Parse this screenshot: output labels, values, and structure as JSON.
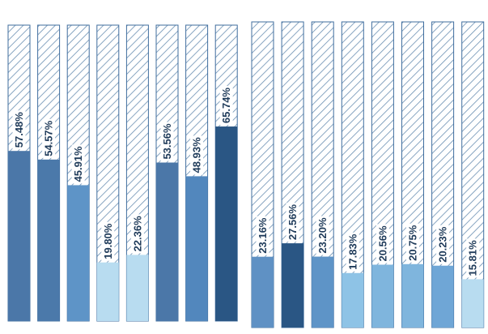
{
  "chart_data": [
    {
      "type": "bar",
      "stacking": "percent-of-100",
      "panel": "left",
      "ylim": [
        0,
        100
      ],
      "grid": false,
      "legend": "none",
      "values": [
        57.48,
        54.57,
        45.91,
        19.8,
        22.36,
        53.56,
        48.93,
        65.74
      ],
      "labels": [
        "57.48%",
        "54.57%",
        "45.91%",
        "19.80%",
        "22.36%",
        "53.56%",
        "48.93%",
        "65.74%"
      ],
      "colors": [
        "#4b77a8",
        "#4b79aa",
        "#5e94c7",
        "#b8dcf0",
        "#b8dcf0",
        "#4b77a8",
        "#5287bd",
        "#2a5684"
      ]
    },
    {
      "type": "bar",
      "stacking": "percent-of-100",
      "panel": "right",
      "ylim": [
        0,
        100
      ],
      "grid": false,
      "legend": "none",
      "values": [
        23.16,
        27.56,
        23.2,
        17.83,
        20.56,
        20.75,
        20.23,
        15.81
      ],
      "labels": [
        "23.16%",
        "27.56%",
        "23.20%",
        "17.83%",
        "20.56%",
        "20.75%",
        "20.23%",
        "15.81%"
      ],
      "colors": [
        "#5f91c4",
        "#2a5684",
        "#5e94c7",
        "#8ec3e6",
        "#7fb5dd",
        "#7fb5dd",
        "#6fa6d6",
        "#b8dcf0"
      ]
    }
  ],
  "style": {
    "hatch_color": "#6a8fb2",
    "outline_color": "#3f6d9e",
    "label_color": "#1f3b5a"
  }
}
